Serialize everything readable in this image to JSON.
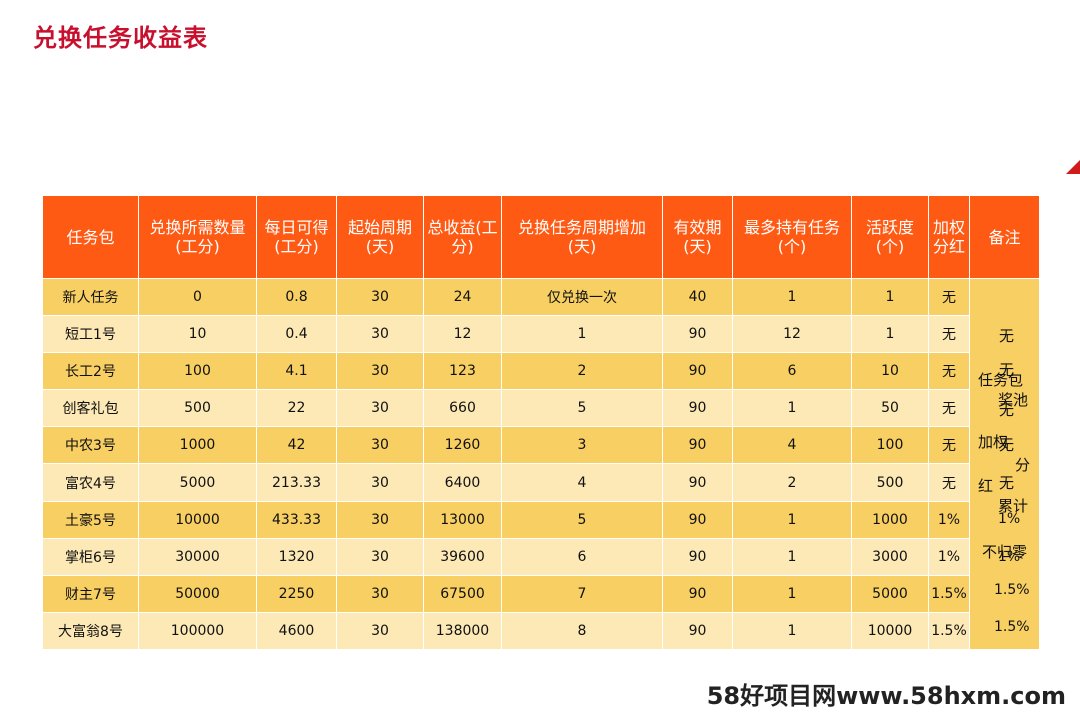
{
  "title": "兑换任务收益表",
  "headers": [
    "任务包",
    "兑换所需数量(工分)",
    "每日可得(工分)",
    "起始周期(天)",
    "总收益(工分)",
    "兑换任务周期增加(天)",
    "有效期(天)",
    "最多持有任务(个)",
    "活跃度(个)",
    "加权分红",
    "备注"
  ],
  "rows": [
    [
      "新人任务",
      "0",
      "0.8",
      "30",
      "24",
      "仅兑换一次",
      "40",
      "1",
      "1",
      "无"
    ],
    [
      "短工1号",
      "10",
      "0.4",
      "30",
      "12",
      "1",
      "90",
      "12",
      "1",
      "无"
    ],
    [
      "长工2号",
      "100",
      "4.1",
      "30",
      "123",
      "2",
      "90",
      "6",
      "10",
      "无"
    ],
    [
      "创客礼包",
      "500",
      "22",
      "30",
      "660",
      "5",
      "90",
      "1",
      "50",
      "无"
    ],
    [
      "中农3号",
      "1000",
      "42",
      "30",
      "1260",
      "3",
      "90",
      "4",
      "100",
      "无"
    ],
    [
      "富农4号",
      "5000",
      "213.33",
      "30",
      "6400",
      "4",
      "90",
      "2",
      "500",
      "无"
    ],
    [
      "土豪5号",
      "10000",
      "433.33",
      "30",
      "13000",
      "5",
      "90",
      "1",
      "1000",
      "1%"
    ],
    [
      "掌柜6号",
      "30000",
      "1320",
      "30",
      "39600",
      "6",
      "90",
      "1",
      "3000",
      "1%"
    ],
    [
      "财主7号",
      "50000",
      "2250",
      "30",
      "67500",
      "7",
      "90",
      "1",
      "5000",
      "1.5%"
    ],
    [
      "大富翁8号",
      "100000",
      "4600",
      "30",
      "138000",
      "8",
      "90",
      "1",
      "10000",
      "1.5%"
    ]
  ],
  "notes": {
    "n1": "无",
    "n2": "无",
    "n3": "任务包",
    "n4": "奖池",
    "n5": "无",
    "n6": "加权",
    "n7": "无",
    "n8": "分",
    "n9": "红",
    "n10": "无",
    "n11": "累计",
    "n12": "1%",
    "n13": "不归零",
    "n14": "1%",
    "n15": "1.5%",
    "n16": "1.5%"
  },
  "watermark": "58好项目网www.58hxm.com"
}
